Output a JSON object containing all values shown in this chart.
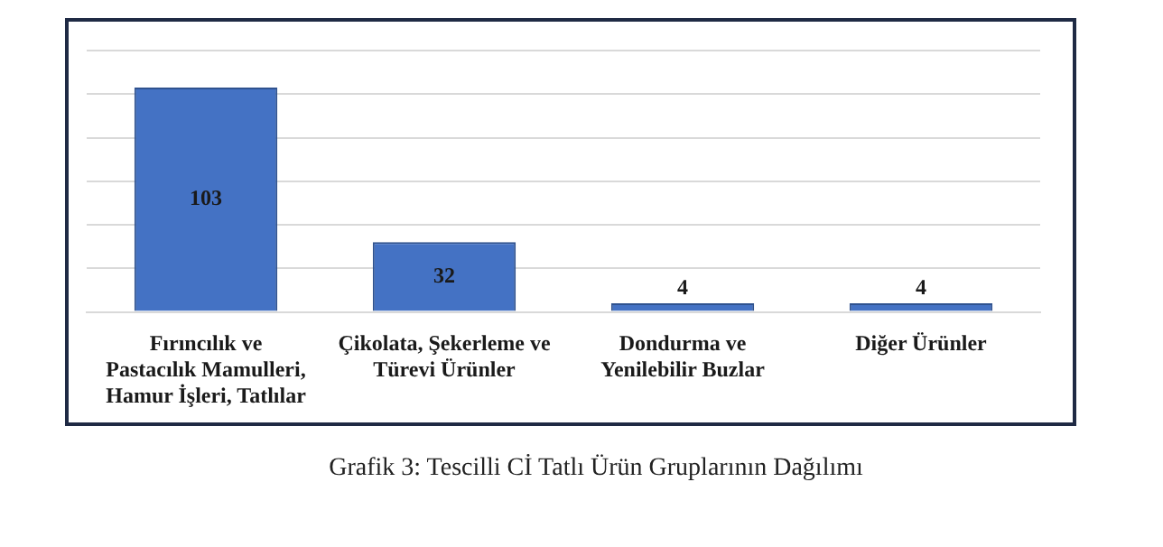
{
  "chart_data": {
    "type": "bar",
    "categories": [
      "Fırıncılık ve Pastacılık Mamulleri, Hamur İşleri, Tatlılar",
      "Çikolata, Şekerleme ve Türevi Ürünler",
      "Dondurma ve Yenilebilir Buzlar",
      "Diğer Ürünler"
    ],
    "values": [
      103,
      32,
      4,
      4
    ],
    "color": "#4472c4",
    "data_labels": true,
    "ylim": [
      0,
      120
    ],
    "yticks": [
      0,
      20,
      40,
      60,
      80,
      100,
      120
    ],
    "grid": "y",
    "tick_labels": "x",
    "legend": false,
    "annotations": [
      "Grafik 3: Tescilli Cİ Tatlı Ürün Gruplarının Dağılımı"
    ]
  }
}
